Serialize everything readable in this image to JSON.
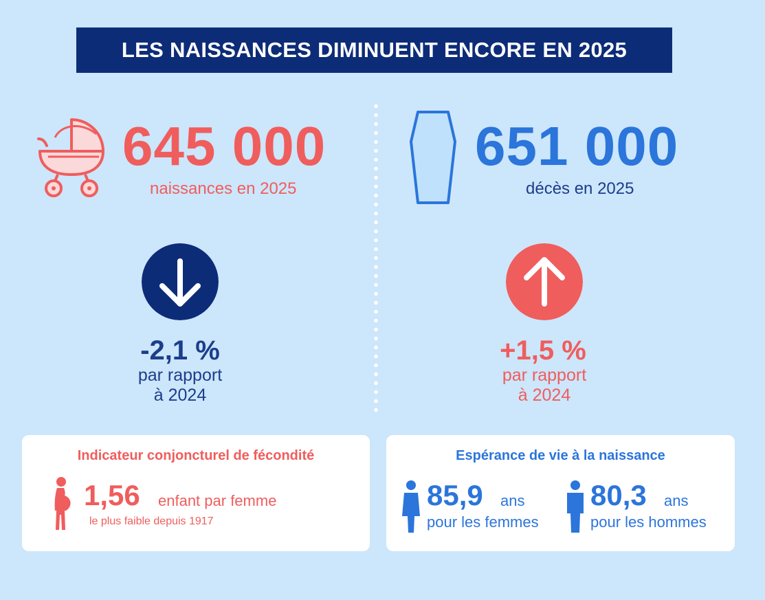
{
  "title": "LES NAISSANCES DIMINUENT ENCORE EN 2025",
  "births": {
    "value": "645 000",
    "label": "naissances en 2025",
    "icon": "baby-carriage-icon",
    "change": "-2,1 %",
    "change_line1": "par rapport",
    "change_line2": "à 2024",
    "change_icon": "arrow-down-icon"
  },
  "deaths": {
    "value": "651 000",
    "label": "décès en 2025",
    "icon": "coffin-icon",
    "change": "+1,5 %",
    "change_line1": "par rapport",
    "change_line2": "à 2024",
    "change_icon": "arrow-up-icon"
  },
  "fertility": {
    "title": "Indicateur conjoncturel de fécondité",
    "value": "1,56",
    "unit": "enfant par femme",
    "note": "le plus faible depuis 1917",
    "icon": "pregnant-woman-icon"
  },
  "life_expectancy": {
    "title": "Espérance de vie à la naissance",
    "women": {
      "value": "85,9",
      "unit": "ans",
      "label": "pour les femmes",
      "icon": "woman-icon"
    },
    "men": {
      "value": "80,3",
      "unit": "ans",
      "label": "pour les hommes",
      "icon": "man-icon"
    }
  },
  "colors": {
    "background": "#cce6fb",
    "navy": "#0d2c78",
    "red": "#f05d5d",
    "blue": "#2b75db",
    "dark_blue_text": "#1c3d8c"
  }
}
